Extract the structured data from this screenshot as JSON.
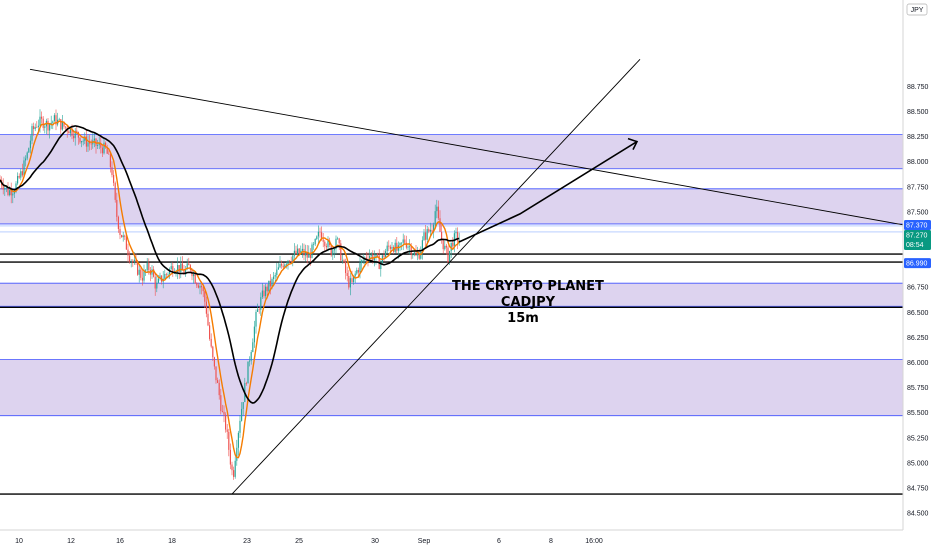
{
  "chart_data": {
    "type": "candlestick",
    "symbol": "CADJPY",
    "timeframe": "15m",
    "currency_label": "JPY",
    "y_ticks": [
      84.5,
      84.75,
      85.0,
      85.25,
      85.5,
      85.75,
      86.0,
      86.25,
      86.5,
      86.75,
      87.0,
      87.25,
      87.5,
      87.75,
      88.0,
      88.25,
      88.5,
      88.75
    ],
    "y_tick_labels": [
      "84.500",
      "84.750",
      "85.000",
      "85.250",
      "85.500",
      "85.750",
      "86.000",
      "86.250",
      "86.500",
      "86.750",
      "87.000",
      "87.250",
      "87.500",
      "87.750",
      "88.000",
      "88.250",
      "88.500",
      "88.750"
    ],
    "ylim": [
      84.4,
      88.82
    ],
    "x_ticks": [
      "10",
      "12",
      "16",
      "18",
      "23",
      "25",
      "30",
      "Sep",
      "6",
      "8",
      "16:00"
    ],
    "price_series": [
      [
        0,
        87.82
      ],
      [
        8,
        87.7
      ],
      [
        15,
        87.74
      ],
      [
        22,
        87.9
      ],
      [
        28,
        88.1
      ],
      [
        32,
        88.3
      ],
      [
        37,
        88.38
      ],
      [
        42,
        88.4
      ],
      [
        48,
        88.37
      ],
      [
        55,
        88.42
      ],
      [
        62,
        88.36
      ],
      [
        70,
        88.32
      ],
      [
        78,
        88.26
      ],
      [
        85,
        88.2
      ],
      [
        92,
        88.18
      ],
      [
        100,
        88.15
      ],
      [
        106,
        88.12
      ],
      [
        112,
        87.9
      ],
      [
        116,
        87.5
      ],
      [
        120,
        87.3
      ],
      [
        125,
        87.2
      ],
      [
        130,
        87.05
      ],
      [
        136,
        86.95
      ],
      [
        142,
        86.85
      ],
      [
        148,
        86.95
      ],
      [
        152,
        86.9
      ],
      [
        156,
        86.75
      ],
      [
        160,
        86.82
      ],
      [
        166,
        86.88
      ],
      [
        172,
        86.95
      ],
      [
        178,
        86.95
      ],
      [
        184,
        86.9
      ],
      [
        190,
        86.96
      ],
      [
        196,
        86.82
      ],
      [
        202,
        86.75
      ],
      [
        206,
        86.55
      ],
      [
        210,
        86.2
      ],
      [
        214,
        85.95
      ],
      [
        218,
        85.75
      ],
      [
        222,
        85.5
      ],
      [
        226,
        85.35
      ],
      [
        230,
        85.05
      ],
      [
        233,
        84.85
      ],
      [
        236,
        85.15
      ],
      [
        240,
        85.45
      ],
      [
        244,
        85.7
      ],
      [
        248,
        85.95
      ],
      [
        252,
        86.2
      ],
      [
        256,
        86.45
      ],
      [
        260,
        86.6
      ],
      [
        264,
        86.7
      ],
      [
        268,
        86.75
      ],
      [
        272,
        86.8
      ],
      [
        278,
        86.92
      ],
      [
        284,
        87.0
      ],
      [
        290,
        87.05
      ],
      [
        296,
        87.08
      ],
      [
        302,
        87.1
      ],
      [
        308,
        87.05
      ],
      [
        314,
        87.15
      ],
      [
        320,
        87.3
      ],
      [
        326,
        87.2
      ],
      [
        332,
        87.1
      ],
      [
        336,
        87.25
      ],
      [
        340,
        87.1
      ],
      [
        344,
        86.95
      ],
      [
        348,
        86.8
      ],
      [
        352,
        86.78
      ],
      [
        356,
        86.9
      ],
      [
        362,
        87.0
      ],
      [
        368,
        87.08
      ],
      [
        374,
        87.05
      ],
      [
        380,
        86.98
      ],
      [
        386,
        87.12
      ],
      [
        392,
        87.18
      ],
      [
        398,
        87.1
      ],
      [
        404,
        87.22
      ],
      [
        410,
        87.15
      ],
      [
        416,
        87.05
      ],
      [
        420,
        87.1
      ],
      [
        424,
        87.25
      ],
      [
        428,
        87.3
      ],
      [
        432,
        87.35
      ],
      [
        436,
        87.55
      ],
      [
        440,
        87.3
      ],
      [
        444,
        87.15
      ],
      [
        448,
        87.05
      ],
      [
        452,
        87.2
      ],
      [
        456,
        87.25
      ],
      [
        460,
        87.22
      ]
    ],
    "zones": [
      {
        "top": 88.27,
        "bottom": 87.93
      },
      {
        "top": 87.73,
        "bottom": 87.38
      },
      {
        "top": 86.79,
        "bottom": 86.56
      },
      {
        "top": 86.03,
        "bottom": 85.47
      }
    ],
    "levels_thin_blue": [
      87.36,
      87.3
    ],
    "levels_black": [
      87.08,
      87.0,
      86.55,
      84.69
    ],
    "support_line": {
      "from": [
        232,
        84.69
      ],
      "to": [
        640,
        89.02
      ]
    },
    "resistance_line": {
      "from": [
        30,
        88.92
      ],
      "to": [
        932,
        87.32
      ]
    },
    "projection_arrow": {
      "from": [
        459,
        87.2
      ],
      "via": [
        520,
        87.48
      ],
      "to": [
        637,
        88.2
      ]
    },
    "price_badges": [
      {
        "label": "87.370",
        "color": "#2962ff",
        "value": 87.37
      },
      {
        "label": "87.270",
        "sublabel": "08:54",
        "color": "#089981",
        "value": 87.27
      },
      {
        "label": "86.990",
        "color": "#2962ff",
        "value": 86.99
      }
    ],
    "annotation": [
      "THE CRYPTO PLANET",
      "CADJPY",
      "15m"
    ],
    "colors": {
      "zone_fill": "#d1c4e9",
      "zone_border": "#3f51ff",
      "up_candle": "#26a69a",
      "down_candle": "#ef5350",
      "ma_fast": "#f57c00",
      "ma_slow": "#000000"
    }
  }
}
